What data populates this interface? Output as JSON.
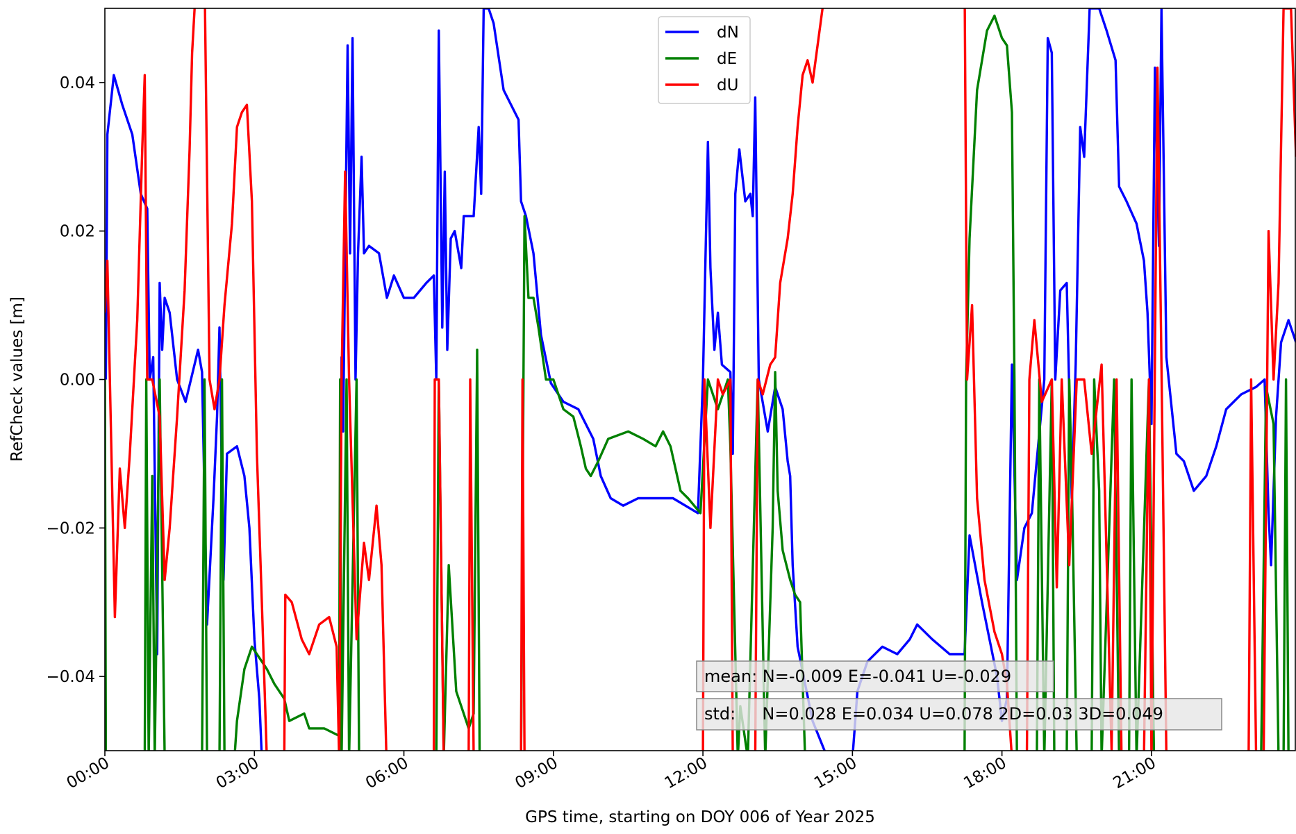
{
  "chart_data": {
    "type": "line",
    "xlabel": "GPS time, starting on DOY 006 of Year 2025",
    "ylabel": "RefCheck values [m]",
    "xlim": [
      0,
      23.9
    ],
    "ylim": [
      -0.05,
      0.05
    ],
    "xticks": [
      {
        "value": 0,
        "label": "00:00"
      },
      {
        "value": 3,
        "label": "03:00"
      },
      {
        "value": 6,
        "label": "06:00"
      },
      {
        "value": 9,
        "label": "09:00"
      },
      {
        "value": 12,
        "label": "12:00"
      },
      {
        "value": 15,
        "label": "15:00"
      },
      {
        "value": 18,
        "label": "18:00"
      },
      {
        "value": 21,
        "label": "21:00"
      }
    ],
    "yticks": [
      {
        "value": -0.04,
        "label": "−0.04"
      },
      {
        "value": -0.02,
        "label": "−0.02"
      },
      {
        "value": 0,
        "label": "0.00"
      },
      {
        "value": 0.02,
        "label": "0.02"
      },
      {
        "value": 0.04,
        "label": "0.04"
      }
    ],
    "legend": "upper center",
    "annotations": [
      "mean: N=-0.009 E=-0.041 U=-0.029",
      "std:     N=0.028 E=0.034 U=0.078 2D=0.03 3D=0.049"
    ],
    "series": [
      {
        "name": "dN",
        "color": "#0000ff",
        "x": [
          0.02,
          0.05,
          0.18,
          0.35,
          0.55,
          0.72,
          0.85,
          0.9,
          0.97,
          1.05,
          1.1,
          1.15,
          1.2,
          1.3,
          1.45,
          1.62,
          1.87,
          1.95,
          2.05,
          2.18,
          2.25,
          2.3,
          2.38,
          2.45,
          2.65,
          2.8,
          2.9,
          3.0,
          3.1,
          3.15,
          4.7,
          4.75,
          4.78,
          4.87,
          4.92,
          4.97,
          5.03,
          5.08,
          5.15,
          5.2,
          5.3,
          5.5,
          5.66,
          5.8,
          6.0,
          6.2,
          6.45,
          6.6,
          6.65,
          6.7,
          6.77,
          6.82,
          6.87,
          6.94,
          7.02,
          7.15,
          7.2,
          7.4,
          7.5,
          7.55,
          7.6,
          7.7,
          7.8,
          8.0,
          8.3,
          8.35,
          8.45,
          8.6,
          8.75,
          8.95,
          9.2,
          9.5,
          9.8,
          9.95,
          10.15,
          10.4,
          10.7,
          11.05,
          11.4,
          11.9,
          12.0,
          12.1,
          12.15,
          12.23,
          12.3,
          12.38,
          12.55,
          12.6,
          12.65,
          12.73,
          12.85,
          12.95,
          13.0,
          13.05,
          13.12,
          13.3,
          13.45,
          13.6,
          13.7,
          13.75,
          13.8,
          13.9,
          14.2,
          14.5,
          15.0,
          15.1,
          15.3,
          15.6,
          15.9,
          16.15,
          16.3,
          16.6,
          16.95,
          17.25,
          17.35,
          17.6,
          17.9,
          18.0,
          18.1,
          18.2,
          18.3,
          18.45,
          18.6,
          18.85,
          18.92,
          19.0,
          19.07,
          19.17,
          19.3,
          19.4,
          19.48,
          19.57,
          19.65,
          19.76,
          19.95,
          20.1,
          20.28,
          20.35,
          20.5,
          20.7,
          20.85,
          20.92,
          21.0,
          21.07,
          21.15,
          21.2,
          21.3,
          21.5,
          21.65,
          21.85,
          22.1,
          22.3,
          22.5,
          22.8,
          23.1,
          23.27,
          23.35,
          23.4,
          23.5,
          23.6,
          23.75,
          23.9
        ],
        "values": [
          0.0,
          0.033,
          0.041,
          0.037,
          0.033,
          0.025,
          0.023,
          0.0,
          0.003,
          -0.037,
          0.013,
          0.004,
          0.011,
          0.009,
          0.0,
          -0.003,
          0.004,
          0.001,
          -0.033,
          -0.016,
          -0.005,
          0.007,
          -0.027,
          -0.01,
          -0.009,
          -0.013,
          -0.02,
          -0.035,
          -0.043,
          -0.051,
          -0.051,
          0.003,
          -0.007,
          0.045,
          0.017,
          0.046,
          0.0,
          0.017,
          0.03,
          0.017,
          0.018,
          0.017,
          0.011,
          0.014,
          0.011,
          0.011,
          0.013,
          0.014,
          0.0,
          0.047,
          0.007,
          0.028,
          0.004,
          0.019,
          0.02,
          0.015,
          0.022,
          0.022,
          0.034,
          0.025,
          0.05,
          0.05,
          0.048,
          0.039,
          0.035,
          0.024,
          0.022,
          0.017,
          0.006,
          -0.0005,
          -0.003,
          -0.004,
          -0.008,
          -0.013,
          -0.016,
          -0.017,
          -0.016,
          -0.016,
          -0.016,
          -0.018,
          0.0,
          0.032,
          0.015,
          0.004,
          0.009,
          0.002,
          0.001,
          -0.01,
          0.025,
          0.031,
          0.024,
          0.025,
          0.022,
          0.038,
          0.0,
          -0.007,
          -0.001,
          -0.004,
          -0.011,
          -0.013,
          -0.025,
          -0.036,
          -0.046,
          -0.051,
          -0.051,
          -0.042,
          -0.038,
          -0.036,
          -0.037,
          -0.035,
          -0.033,
          -0.035,
          -0.037,
          -0.037,
          -0.021,
          -0.03,
          -0.04,
          -0.046,
          -0.043,
          0.002,
          -0.027,
          -0.02,
          -0.018,
          0.0,
          0.046,
          0.044,
          0.0,
          0.012,
          0.013,
          -0.016,
          0.002,
          0.034,
          0.03,
          0.05,
          0.05,
          0.047,
          0.043,
          0.026,
          0.024,
          0.021,
          0.016,
          0.009,
          -0.006,
          0.042,
          0.018,
          0.05,
          0.003,
          -0.01,
          -0.011,
          -0.015,
          -0.013,
          -0.009,
          -0.004,
          -0.002,
          -0.001,
          0.0,
          -0.018,
          -0.025,
          -0.005,
          0.005,
          0.008,
          0.005
        ]
      },
      {
        "name": "dE",
        "color": "#008000",
        "x": [
          0.0,
          0.02,
          0.8,
          0.83,
          0.88,
          0.95,
          1.0,
          1.1,
          1.2,
          1.95,
          2.0,
          2.05,
          2.3,
          2.35,
          2.4,
          2.6,
          2.65,
          2.8,
          2.95,
          3.05,
          3.25,
          3.4,
          3.6,
          3.7,
          4.0,
          4.1,
          4.4,
          4.7,
          4.72,
          4.75,
          4.85,
          4.9,
          5.05,
          5.1,
          6.65,
          6.7,
          6.8,
          6.9,
          7.05,
          7.3,
          7.4,
          7.47,
          7.52,
          8.35,
          8.42,
          8.5,
          8.6,
          8.7,
          8.85,
          9.0,
          9.2,
          9.4,
          9.55,
          9.65,
          9.75,
          9.9,
          10.1,
          10.5,
          10.8,
          11.05,
          11.2,
          11.35,
          11.55,
          11.7,
          11.95,
          12.1,
          12.3,
          12.5,
          12.55,
          12.7,
          12.75,
          12.9,
          13.1,
          13.25,
          13.4,
          13.45,
          13.5,
          13.6,
          13.75,
          13.85,
          13.95,
          14.05,
          17.25,
          17.28,
          17.35,
          17.5,
          17.7,
          17.85,
          18.0,
          18.1,
          18.2,
          18.25,
          18.3,
          18.7,
          18.75,
          18.85,
          19.0,
          19.05,
          19.3,
          19.35,
          19.4,
          19.5,
          19.8,
          19.85,
          19.95,
          20.0,
          20.25,
          20.35,
          20.55,
          20.6,
          20.7,
          20.95,
          21.05,
          23.2,
          23.3,
          23.45,
          23.55,
          23.65,
          23.7,
          23.75,
          23.9
        ],
        "values": [
          0.0,
          -0.051,
          -0.051,
          0.0,
          -0.051,
          -0.013,
          -0.051,
          0.0,
          -0.051,
          -0.051,
          0.0,
          -0.051,
          -0.051,
          0.0,
          -0.051,
          -0.051,
          -0.046,
          -0.039,
          -0.036,
          -0.037,
          -0.039,
          -0.041,
          -0.043,
          -0.046,
          -0.045,
          -0.047,
          -0.047,
          -0.048,
          0.0,
          -0.051,
          0.0,
          -0.051,
          0.0,
          -0.051,
          -0.051,
          0.0,
          -0.051,
          -0.025,
          -0.042,
          -0.047,
          -0.045,
          0.004,
          -0.051,
          -0.051,
          0.022,
          0.011,
          0.011,
          0.007,
          0.0,
          0.0,
          -0.004,
          -0.005,
          -0.009,
          -0.012,
          -0.013,
          -0.011,
          -0.008,
          -0.007,
          -0.008,
          -0.009,
          -0.007,
          -0.009,
          -0.015,
          -0.016,
          -0.018,
          0.0,
          -0.004,
          0.0,
          -0.009,
          -0.051,
          -0.044,
          -0.051,
          0.0,
          -0.051,
          -0.02,
          0.001,
          -0.015,
          -0.023,
          -0.027,
          -0.029,
          -0.03,
          -0.051,
          -0.051,
          0.0,
          0.019,
          0.039,
          0.047,
          0.049,
          0.046,
          0.045,
          0.036,
          0.0,
          -0.051,
          -0.051,
          0.0,
          -0.051,
          0.0,
          -0.051,
          -0.051,
          0.0,
          -0.013,
          -0.051,
          -0.051,
          0.0,
          -0.015,
          -0.051,
          0.0,
          -0.051,
          -0.051,
          0.0,
          -0.051,
          0.0,
          -0.051,
          -0.051,
          -0.001,
          -0.006,
          -0.051,
          -0.051,
          0.0,
          -0.051,
          -0.051
        ]
      },
      {
        "name": "dU",
        "color": "#ff0000",
        "x": [
          0.0,
          0.05,
          0.1,
          0.2,
          0.3,
          0.4,
          0.5,
          0.65,
          0.75,
          0.8,
          0.85,
          0.95,
          1.1,
          1.2,
          1.3,
          1.45,
          1.6,
          1.7,
          1.75,
          1.8,
          2.0,
          2.1,
          2.2,
          2.3,
          2.4,
          2.55,
          2.65,
          2.75,
          2.85,
          2.95,
          3.05,
          3.15,
          3.25,
          3.6,
          3.62,
          3.75,
          3.95,
          4.1,
          4.3,
          4.5,
          4.65,
          4.7,
          4.75,
          4.82,
          4.9,
          5.05,
          5.2,
          5.3,
          5.45,
          5.55,
          5.65,
          6.6,
          6.62,
          6.7,
          6.8,
          7.3,
          7.33,
          7.4,
          8.35,
          8.38,
          8.42,
          12.0,
          12.03,
          12.15,
          12.3,
          12.4,
          12.55,
          12.6,
          13.05,
          13.1,
          13.2,
          13.35,
          13.45,
          13.55,
          13.7,
          13.8,
          13.9,
          14.0,
          14.1,
          14.2,
          14.4,
          14.5,
          17.25,
          17.3,
          17.4,
          17.5,
          17.65,
          17.85,
          18.0,
          18.1,
          18.2,
          18.5,
          18.55,
          18.65,
          18.8,
          19.0,
          19.1,
          19.2,
          19.35,
          19.5,
          19.65,
          19.8,
          20.0,
          20.2,
          20.3,
          20.4,
          20.85,
          20.95,
          21.0,
          21.12,
          21.2,
          21.3,
          22.95,
          23.0,
          23.1,
          23.25,
          23.35,
          23.45,
          23.55,
          23.65,
          23.8,
          23.9
        ],
        "values": [
          0.009,
          0.016,
          0.0,
          -0.032,
          -0.012,
          -0.02,
          -0.01,
          0.008,
          0.031,
          0.041,
          0.0,
          0.0,
          -0.005,
          -0.027,
          -0.02,
          -0.005,
          0.012,
          0.031,
          0.044,
          0.05,
          0.055,
          0.0,
          -0.004,
          0.0,
          0.01,
          0.021,
          0.034,
          0.036,
          0.037,
          0.024,
          -0.01,
          -0.03,
          -0.051,
          -0.051,
          -0.029,
          -0.03,
          -0.035,
          -0.037,
          -0.033,
          -0.032,
          -0.036,
          -0.051,
          0.0,
          0.028,
          0.0,
          -0.035,
          -0.022,
          -0.027,
          -0.017,
          -0.025,
          -0.051,
          -0.051,
          0.0,
          0.0,
          -0.051,
          -0.051,
          0.0,
          -0.051,
          -0.051,
          0.0,
          -0.051,
          -0.051,
          0.0,
          -0.02,
          0.0,
          -0.002,
          0.0,
          -0.051,
          -0.051,
          0.0,
          -0.002,
          0.002,
          0.003,
          0.013,
          0.019,
          0.025,
          0.034,
          0.041,
          0.043,
          0.04,
          0.05,
          0.055,
          0.055,
          0.0,
          0.01,
          -0.016,
          -0.027,
          -0.034,
          -0.037,
          -0.041,
          -0.051,
          -0.051,
          0.0,
          0.008,
          -0.003,
          0.0,
          -0.028,
          0.0,
          -0.025,
          0.0,
          0.0,
          -0.01,
          0.002,
          -0.05,
          0.0,
          -0.051,
          -0.051,
          0.0,
          -0.051,
          0.042,
          0.002,
          -0.051,
          -0.051,
          0.0,
          -0.051,
          -0.051,
          0.02,
          0.0,
          0.013,
          0.05,
          0.05,
          0.03
        ]
      }
    ]
  }
}
